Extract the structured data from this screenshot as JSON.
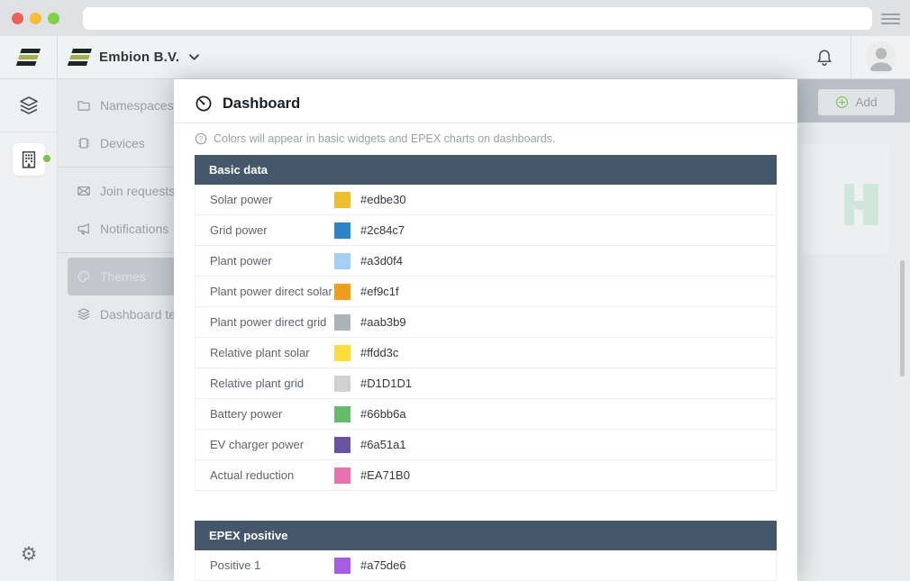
{
  "browser": {
    "traffic_lights": [
      "#f0605a",
      "#f8bd30",
      "#7fd245"
    ],
    "menu_icon": "hamburger-icon"
  },
  "header": {
    "org_name": "Embion B.V.",
    "bell_icon": "bell-icon",
    "avatar_icon": "user-avatar"
  },
  "rail": {
    "items": [
      {
        "icon": "layers-icon",
        "active": false
      },
      {
        "icon": "building-icon",
        "active": true,
        "indicator_color": "#7cc345"
      }
    ],
    "settings_icon": "gear-icon"
  },
  "sidebar": {
    "items": [
      {
        "label": "Namespaces",
        "icon": "folder-icon",
        "selected": false,
        "divider_before": false
      },
      {
        "label": "Devices",
        "icon": "chip-icon",
        "selected": false,
        "divider_before": false
      },
      {
        "label": "Join requests",
        "icon": "envelope-icon",
        "selected": false,
        "divider_before": true
      },
      {
        "label": "Notifications",
        "icon": "megaphone-icon",
        "selected": false,
        "divider_before": false
      },
      {
        "label": "Themes",
        "icon": "palette-icon",
        "selected": true,
        "divider_before": true
      },
      {
        "label": "Dashboard te",
        "icon": "stack-icon",
        "selected": false,
        "divider_before": false
      }
    ]
  },
  "toolbar": {
    "add_label": "Add"
  },
  "panel": {
    "title": "Dashboard",
    "title_icon": "gauge-icon",
    "info_icon": "question-circle-icon",
    "info": "Colors will appear in basic widgets and EPEX charts on dashboards.",
    "sections": [
      {
        "title": "Basic data",
        "rows": [
          {
            "label": "Solar power",
            "hex": "#edbe30"
          },
          {
            "label": "Grid power",
            "hex": "#2c84c7"
          },
          {
            "label": "Plant power",
            "hex": "#a3d0f4"
          },
          {
            "label": "Plant power direct solar",
            "hex": "#ef9c1f"
          },
          {
            "label": "Plant power direct grid",
            "hex": "#aab3b9"
          },
          {
            "label": "Relative plant solar",
            "hex": "#ffdd3c"
          },
          {
            "label": "Relative plant grid",
            "hex": "#D1D1D1"
          },
          {
            "label": "Battery power",
            "hex": "#66bb6a"
          },
          {
            "label": "EV charger power",
            "hex": "#6a51a1"
          },
          {
            "label": "Actual reduction",
            "hex": "#EA71B0"
          }
        ]
      },
      {
        "title": "EPEX positive",
        "rows": [
          {
            "label": "Positive 1",
            "hex": "#a75de6"
          }
        ]
      }
    ]
  },
  "colors": {
    "table_header": "#45586b",
    "accent_green": "#7cc345",
    "brand_olive": "#a4ae52",
    "h_logo_mint": "#cfe6db"
  }
}
